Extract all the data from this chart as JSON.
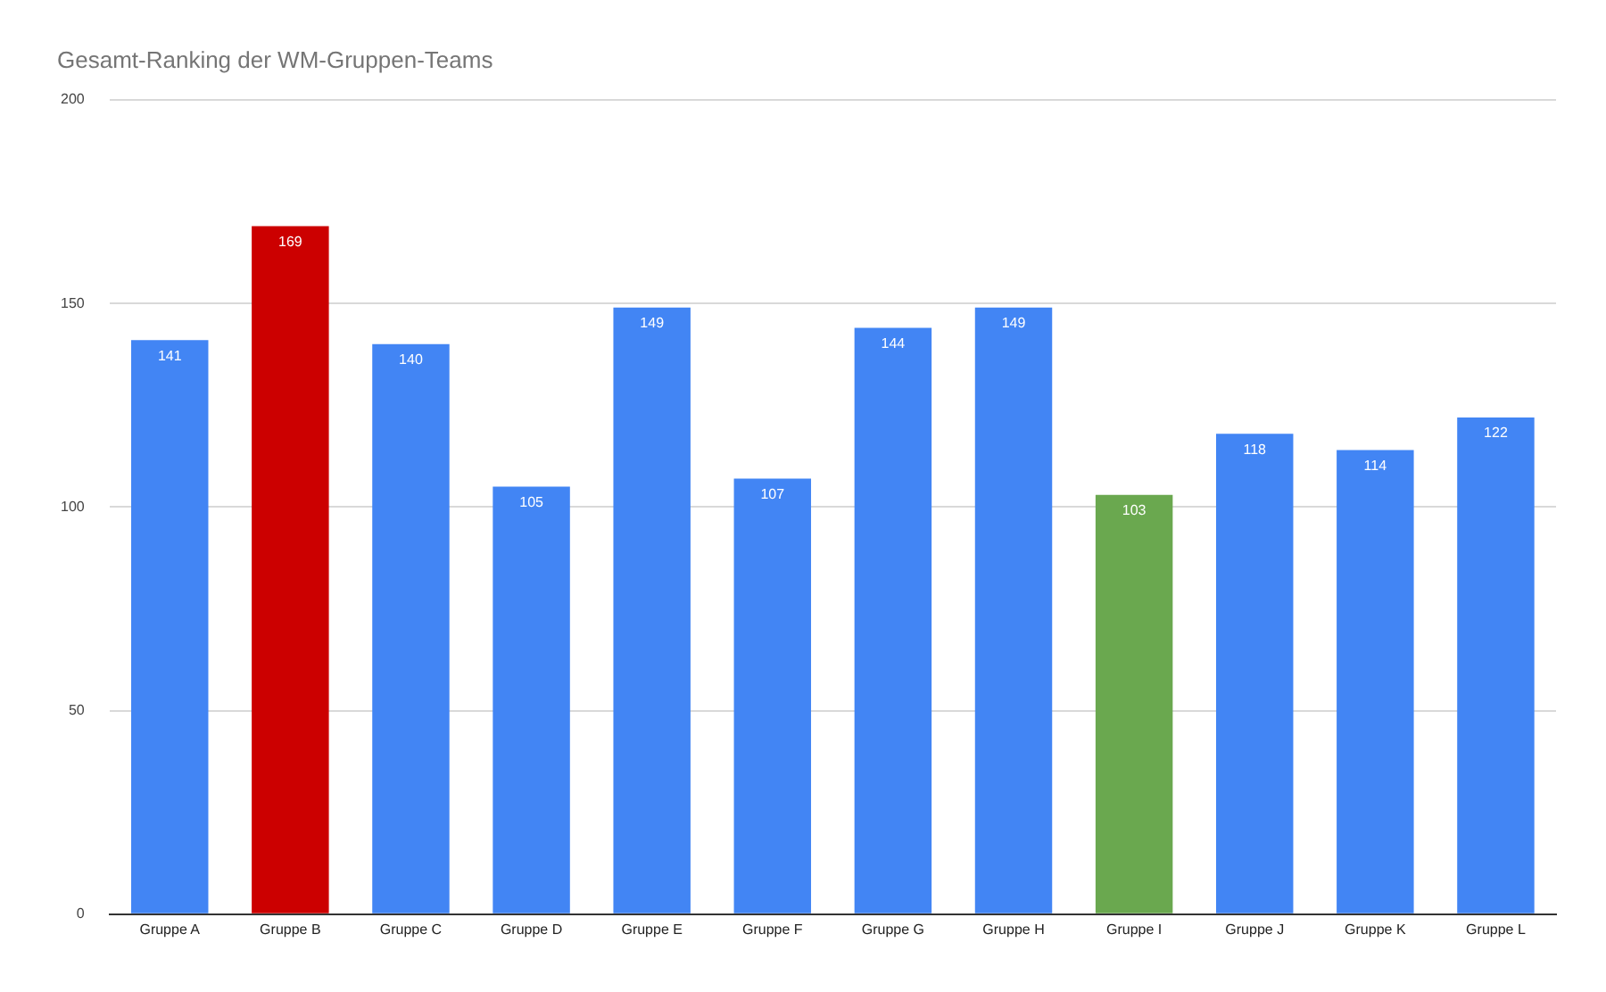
{
  "chart_data": {
    "type": "bar",
    "title": "Gesamt-Ranking der WM-Gruppen-Teams",
    "categories": [
      "Gruppe A",
      "Gruppe B",
      "Gruppe C",
      "Gruppe D",
      "Gruppe E",
      "Gruppe F",
      "Gruppe G",
      "Gruppe H",
      "Gruppe I",
      "Gruppe J",
      "Gruppe K",
      "Gruppe L"
    ],
    "values": [
      141,
      169,
      140,
      105,
      149,
      107,
      144,
      149,
      103,
      118,
      114,
      122
    ],
    "colors": [
      "#4285f4",
      "#cc0000",
      "#4285f4",
      "#4285f4",
      "#4285f4",
      "#4285f4",
      "#4285f4",
      "#4285f4",
      "#6aa84f",
      "#4285f4",
      "#4285f4",
      "#4285f4"
    ],
    "ylim": [
      0,
      200
    ],
    "yticks": [
      0,
      50,
      100,
      150,
      200
    ],
    "grid": "y",
    "legend": false,
    "data_labels": true
  }
}
